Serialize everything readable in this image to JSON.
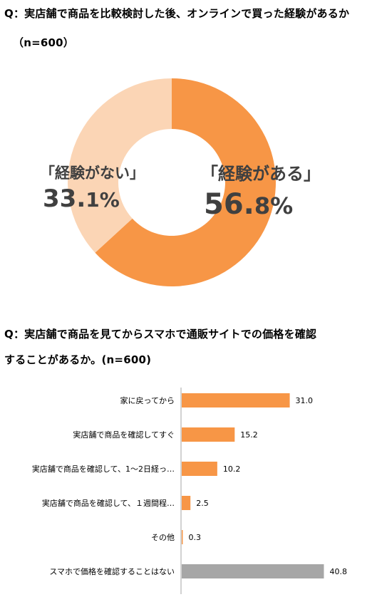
{
  "questions": {
    "q1": "Q：実店舗で商品を比較検討した後、オンラインで買った経験があるか",
    "q1_n": "（n=600）",
    "q2_line1": "Q：実店舗で商品を見てからスマホで通販サイトでの価格を確認",
    "q2_line2": "することがあるか。(n=600)"
  },
  "chart_data": [
    {
      "type": "pie",
      "donut": true,
      "title": "Q：実店舗で商品を比較検討した後、オンラインで買った経験があるか",
      "n": "（n=600）",
      "slices": [
        {
          "label": "「経験がある」",
          "value": 56.8,
          "display_main": "56.",
          "display_dec": "8%",
          "color": "#F79646"
        },
        {
          "label": "「経験がない」",
          "value": 33.1,
          "display_main": "33.",
          "display_dec": "1%",
          "color": "#FBD5B5"
        }
      ]
    },
    {
      "type": "bar",
      "orientation": "horizontal",
      "title": "Q：実店舗で商品を見てからスマホで通販サイトでの価格を確認することがあるか。(n=600)",
      "categories": [
        "家に戻ってから",
        "実店舗で商品を確認してすぐ",
        "実店舗で商品を確認して、1～2日経っ…",
        "実店舗で商品を確認して、１週間程…",
        "その他",
        "スマホで価格を確認することはない"
      ],
      "values": [
        31.0,
        15.2,
        10.2,
        2.5,
        0.3,
        40.8
      ],
      "value_labels": [
        "31.0",
        "15.2",
        "10.2",
        "2.5",
        "0.3",
        "40.8"
      ],
      "colors": [
        "#F79646",
        "#F79646",
        "#F79646",
        "#F79646",
        "#F79646",
        "#A6A6A6"
      ],
      "xlim": [
        0,
        45
      ],
      "grid": false
    }
  ]
}
